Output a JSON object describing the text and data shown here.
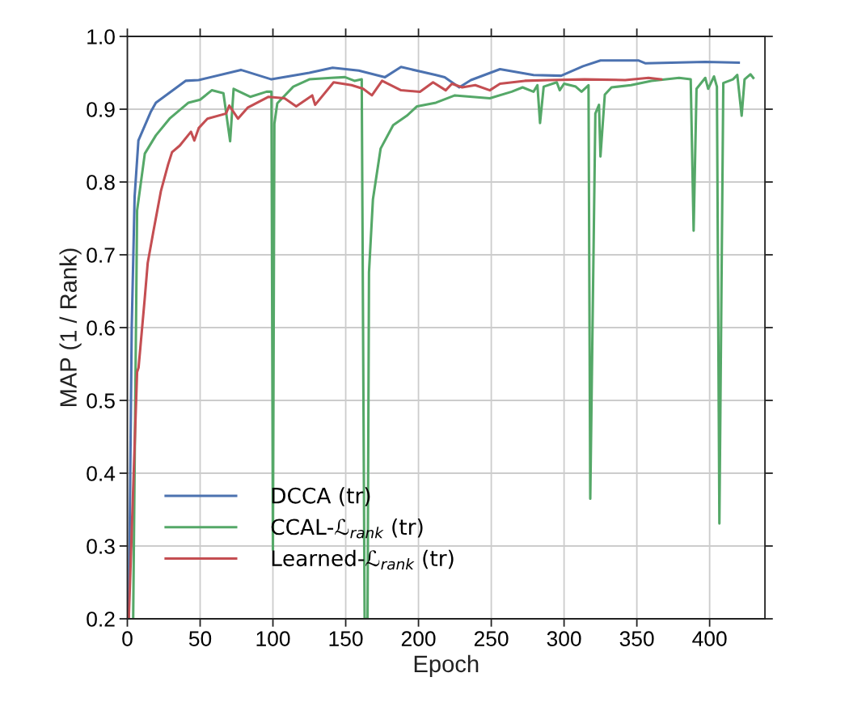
{
  "chart_data": {
    "type": "line",
    "xlabel": "Epoch",
    "ylabel": "MAP (1 / Rank)",
    "xlim": [
      0,
      438
    ],
    "ylim": [
      0.2,
      1.0
    ],
    "xticks": [
      0,
      50,
      100,
      150,
      200,
      250,
      300,
      350,
      400
    ],
    "yticks": [
      0.2,
      0.3,
      0.4,
      0.5,
      0.6,
      0.7,
      0.8,
      0.9,
      {
        "value": 1.0,
        "label": "1.0"
      }
    ],
    "grid": true,
    "legend": "bottom left",
    "line_style": "solid",
    "marker": "none",
    "series": [
      {
        "name": "DCCA (tr)",
        "color": "#4c72b0",
        "x": [
          1,
          3,
          5,
          7.6,
          16,
          19.6,
          40,
          49,
          78,
          99,
          125,
          141,
          159,
          177,
          188,
          212,
          218,
          228,
          236,
          256,
          279,
          298,
          313,
          325,
          351,
          356,
          397,
          420
        ],
        "values": [
          0.2,
          0.6,
          0.78,
          0.857,
          0.896,
          0.909,
          0.939,
          0.94,
          0.954,
          0.941,
          0.95,
          0.957,
          0.953,
          0.944,
          0.958,
          0.947,
          0.944,
          0.93,
          0.94,
          0.955,
          0.947,
          0.946,
          0.959,
          0.967,
          0.967,
          0.963,
          0.965,
          0.964
        ]
      },
      {
        "name": "CCAL-ℒ$_{rank}$ (tr)",
        "color": "#55a868",
        "x": [
          4,
          6.7,
          12,
          19.6,
          29,
          42,
          50,
          58,
          66,
          70.6,
          73,
          84.4,
          95.6,
          99,
          100,
          101,
          103,
          114,
          125,
          140,
          149.5,
          156,
          161,
          163,
          165,
          166,
          168.7,
          174,
          182.6,
          192,
          199,
          212,
          225,
          249,
          264,
          271.5,
          279,
          281.7,
          283.5,
          286,
          295,
          297,
          300,
          308,
          312,
          316.8,
          318,
          321.5,
          324,
          325,
          328,
          332.6,
          346,
          360,
          379,
          387,
          389,
          391,
          397,
          399,
          403,
          405,
          406.7,
          409.4,
          416,
          419,
          422,
          424,
          428,
          430
        ],
        "values": [
          0.2,
          0.761,
          0.839,
          0.864,
          0.887,
          0.909,
          0.913,
          0.926,
          0.922,
          0.856,
          0.928,
          0.917,
          0.924,
          0.924,
          0.295,
          0.88,
          0.908,
          0.931,
          0.941,
          0.943,
          0.944,
          0.939,
          0.941,
          0.2,
          0.2,
          0.676,
          0.776,
          0.846,
          0.878,
          0.891,
          0.904,
          0.909,
          0.919,
          0.915,
          0.924,
          0.93,
          0.924,
          0.933,
          0.881,
          0.931,
          0.937,
          0.926,
          0.935,
          0.931,
          0.924,
          0.933,
          0.365,
          0.894,
          0.906,
          0.835,
          0.92,
          0.93,
          0.933,
          0.939,
          0.943,
          0.941,
          0.733,
          0.928,
          0.943,
          0.928,
          0.945,
          0.931,
          0.331,
          0.936,
          0.941,
          0.947,
          0.891,
          0.941,
          0.948,
          0.943
        ]
      },
      {
        "name": "Learned-ℒ$_{rank}$ (tr)",
        "color": "#c44e52",
        "x": [
          1,
          6.7,
          7.7,
          11.9,
          14,
          17.8,
          23,
          28,
          30.7,
          36,
          43.7,
          46,
          49,
          55,
          67.8,
          70,
          76,
          82.6,
          97,
          108,
          116,
          127,
          129,
          141.7,
          154,
          162,
          168,
          175,
          188,
          201,
          210,
          218.7,
          223,
          230,
          239,
          249,
          256,
          273,
          290,
          314,
          342,
          358,
          366.7
        ],
        "values": [
          0.2,
          0.539,
          0.545,
          0.639,
          0.689,
          0.731,
          0.787,
          0.824,
          0.841,
          0.85,
          0.869,
          0.857,
          0.874,
          0.887,
          0.894,
          0.905,
          0.887,
          0.902,
          0.917,
          0.915,
          0.904,
          0.919,
          0.906,
          0.937,
          0.933,
          0.928,
          0.919,
          0.939,
          0.926,
          0.924,
          0.937,
          0.926,
          0.935,
          0.93,
          0.933,
          0.926,
          0.935,
          0.939,
          0.94,
          0.941,
          0.94,
          0.943,
          0.941
        ]
      }
    ]
  }
}
